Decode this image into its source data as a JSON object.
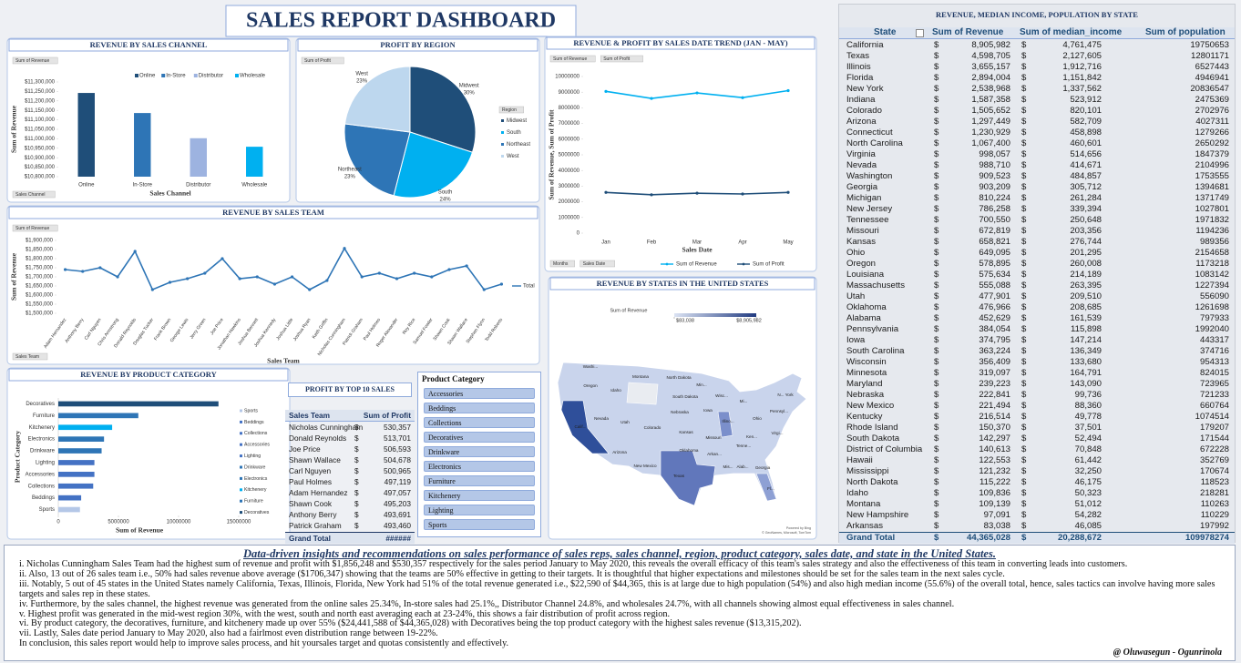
{
  "header": {
    "title": "SALES REPORT DASHBOARD"
  },
  "chart_data": [
    {
      "type": "bar",
      "title": "REVENUE BY SALES CHANNEL",
      "buttons": [
        "Sum of Revenue"
      ],
      "filters": [
        "Sales Channel"
      ],
      "x_label": "Sales Channel",
      "y_label": "Sum of Revenue",
      "legend": "top",
      "categories": [
        "Online",
        "In-Store",
        "Distributor",
        "Wholesale"
      ],
      "values": [
        11242000,
        11136000,
        11003000,
        10958000
      ],
      "colors": [
        "#1f4e79",
        "#2e75b6",
        "#9db3e0",
        "#00b0f0"
      ],
      "ylim": [
        10800000,
        11300000
      ],
      "yticks": [
        {
          "value": 10800000,
          "label": "$10,800,000"
        },
        {
          "value": 10850000,
          "label": "$10,850,000"
        },
        {
          "value": 10900000,
          "label": "$10,900,000"
        },
        {
          "value": 10950000,
          "label": "$10,950,000"
        },
        {
          "value": 11000000,
          "label": "$11,000,000"
        },
        {
          "value": 11050000,
          "label": "$11,050,000"
        },
        {
          "value": 11100000,
          "label": "$11,100,000"
        },
        {
          "value": 11150000,
          "label": "$11,150,000"
        },
        {
          "value": 11200000,
          "label": "$11,200,000"
        },
        {
          "value": 11250000,
          "label": "$11,250,000"
        },
        {
          "value": 11300000,
          "label": "$11,300,000"
        }
      ]
    },
    {
      "type": "pie",
      "title": "PROFIT BY REGION",
      "buttons": [
        "Sum of Profit"
      ],
      "legend_title": "Region",
      "legend": "right",
      "categories": [
        "Midwest",
        "South",
        "Northeast",
        "West"
      ],
      "values": [
        30,
        24,
        23,
        23
      ],
      "value_labels": [
        "30%",
        "24%",
        "23%",
        "23%"
      ],
      "colors": [
        "#1f4e79",
        "#00b0f0",
        "#2e75b6",
        "#bdd7ee"
      ]
    },
    {
      "type": "line",
      "title": "REVENUE & PROFIT BY SALES DATE TREND (JAN - MAY)",
      "buttons": [
        "Sum of Revenue",
        "Sum of Profit"
      ],
      "filters": [
        "Months",
        "Sales Date"
      ],
      "x_label": "Sales Date",
      "y_label": "Sum of Revenue, Sum of Profit",
      "legend": "bottom",
      "categories": [
        "Jan",
        "Feb",
        "Mar",
        "Apr",
        "May"
      ],
      "series": [
        {
          "name": "Sum of Revenue",
          "color": "#00b0f0",
          "values": [
            9050000,
            8600000,
            8950000,
            8650000,
            9100000
          ]
        },
        {
          "name": "Sum of Profit",
          "color": "#1f4e79",
          "values": [
            2600000,
            2450000,
            2550000,
            2500000,
            2600000
          ]
        }
      ],
      "ylim": [
        0,
        10000000
      ],
      "yticks": [
        0,
        1000000,
        2000000,
        3000000,
        4000000,
        5000000,
        6000000,
        7000000,
        8000000,
        9000000,
        10000000
      ]
    },
    {
      "type": "line",
      "title": "REVENUE BY SALES TEAM",
      "buttons": [
        "Sum of Revenue"
      ],
      "filters": [
        "Sales Team"
      ],
      "x_label": "Sales Team",
      "y_label": "Sum of Revenue",
      "legend": "right",
      "categories": [
        "Adam Hernandez",
        "Anthony Berry",
        "Carl Nguyen",
        "Chris Armstrong",
        "Donald Reynolds",
        "Douglas Tucker",
        "Frank Brown",
        "George Lewis",
        "Jerry Green",
        "Joe Price",
        "Jonathan Hawkins",
        "Joshua Bennett",
        "Joshua Kennedy",
        "Joshua Little",
        "Joshua Ryan",
        "Keith Griffin",
        "Nicholas Cunningham",
        "Patrick Graham",
        "Paul Holmes",
        "Roger Alexander",
        "Roy Rice",
        "Samuel Fowler",
        "Shawn Cook",
        "Shawn Wallace",
        "Stephen Flynn",
        "Todd Roberts"
      ],
      "series": [
        {
          "name": "Total",
          "color": "#2e75b6",
          "values": [
            1740000,
            1730000,
            1750000,
            1700000,
            1840000,
            1630000,
            1670000,
            1690000,
            1720000,
            1800000,
            1690000,
            1700000,
            1660000,
            1700000,
            1630000,
            1680000,
            1856248,
            1700000,
            1720000,
            1690000,
            1720000,
            1700000,
            1740000,
            1760000,
            1630000,
            1660000
          ]
        }
      ],
      "ylim": [
        1500000,
        1900000
      ],
      "yticks": [
        {
          "value": 1500000,
          "label": "$1,500,000"
        },
        {
          "value": 1550000,
          "label": "$1,550,000"
        },
        {
          "value": 1600000,
          "label": "$1,600,000"
        },
        {
          "value": 1650000,
          "label": "$1,650,000"
        },
        {
          "value": 1700000,
          "label": "$1,700,000"
        },
        {
          "value": 1750000,
          "label": "$1,750,000"
        },
        {
          "value": 1800000,
          "label": "$1,800,000"
        },
        {
          "value": 1850000,
          "label": "$1,850,000"
        },
        {
          "value": 1900000,
          "label": "$1,900,000"
        }
      ]
    },
    {
      "type": "hbar",
      "title": "REVENUE BY PRODUCT CATEGORY",
      "x_label": "Sum of Revenue",
      "y_label": "Product Category",
      "legend": "right",
      "categories": [
        "Decoratives",
        "Furniture",
        "Kitchenery",
        "Electronics",
        "Drinkware",
        "Lighting",
        "Accessories",
        "Collections",
        "Beddings",
        "Sports"
      ],
      "values": [
        13315202,
        6650000,
        4476386,
        3800000,
        3600000,
        3000000,
        3000000,
        2900000,
        1900000,
        1800000
      ],
      "colors": [
        "#1f4e79",
        "#2e75b6",
        "#00b0f0",
        "#2e75b6",
        "#2e75b6",
        "#4472c4",
        "#4472c4",
        "#4472c4",
        "#4472c4",
        "#b4c7e7"
      ],
      "xlim": [
        0,
        15000000
      ],
      "xticks": [
        0,
        5000000,
        10000000,
        15000000
      ]
    },
    {
      "type": "map",
      "title": "REVENUE BY STATES IN THE UNITED STATES",
      "legend_title": "Sum of Revenue",
      "scale": [
        {
          "value": 83038,
          "label": "$83,038"
        },
        {
          "value": 8905982,
          "label": "$8,905,982"
        }
      ],
      "labels": [
        "Washi...",
        "Montana",
        "North Dakota",
        "Min...",
        "Oregon",
        "Idaho",
        "South Dakota",
        "Wisc...",
        "Mi...",
        "N... York",
        "Nebraska",
        "Iowa",
        "Pennsyl...",
        "Nevada",
        "Utah",
        "Colorado",
        "Illino...",
        "Ohio",
        "Calif...",
        "Kansas",
        "Missouri",
        "Ken...",
        "Virgi...",
        "Tenne...",
        "Arizona",
        "Oklahoma",
        "Arkan...",
        "New Mexico",
        "Mis...",
        "Alab...",
        "Georgia",
        "Texas",
        "Fl..."
      ],
      "credits": [
        "Powered by Bing",
        "© GeoNames, Microsoft, TomTom"
      ]
    }
  ],
  "state_table": {
    "title": "REVENUE, MEDIAN INCOME, POPULATION BY STATE",
    "currency": "$",
    "columns": [
      "State",
      "Sum of Revenue",
      "Sum of median_income",
      "Sum of population"
    ],
    "rows": [
      [
        "California",
        "8,905,982",
        "4,761,475",
        "19750653"
      ],
      [
        "Texas",
        "4,598,705",
        "2,127,605",
        "12801171"
      ],
      [
        "Illinois",
        "3,655,157",
        "1,912,716",
        "6527443"
      ],
      [
        "Florida",
        "2,894,004",
        "1,151,842",
        "4946941"
      ],
      [
        "New York",
        "2,538,968",
        "1,337,562",
        "20836547"
      ],
      [
        "Indiana",
        "1,587,358",
        "523,912",
        "2475369"
      ],
      [
        "Colorado",
        "1,505,652",
        "820,101",
        "2702976"
      ],
      [
        "Arizona",
        "1,297,449",
        "582,709",
        "4027311"
      ],
      [
        "Connecticut",
        "1,230,929",
        "458,898",
        "1279266"
      ],
      [
        "North Carolina",
        "1,067,400",
        "460,601",
        "2650292"
      ],
      [
        "Virginia",
        "998,057",
        "514,656",
        "1847379"
      ],
      [
        "Nevada",
        "988,710",
        "414,671",
        "2104996"
      ],
      [
        "Washington",
        "909,523",
        "484,857",
        "1753555"
      ],
      [
        "Georgia",
        "903,209",
        "305,712",
        "1394681"
      ],
      [
        "Michigan",
        "810,224",
        "261,284",
        "1371749"
      ],
      [
        "New Jersey",
        "786,258",
        "339,394",
        "1027801"
      ],
      [
        "Tennessee",
        "700,550",
        "250,648",
        "1971832"
      ],
      [
        "Missouri",
        "672,819",
        "203,356",
        "1194236"
      ],
      [
        "Kansas",
        "658,821",
        "276,744",
        "989356"
      ],
      [
        "Ohio",
        "649,095",
        "201,295",
        "2154658"
      ],
      [
        "Oregon",
        "578,895",
        "260,008",
        "1173218"
      ],
      [
        "Louisiana",
        "575,634",
        "214,189",
        "1083142"
      ],
      [
        "Massachusetts",
        "555,088",
        "263,395",
        "1227394"
      ],
      [
        "Utah",
        "477,901",
        "209,510",
        "556090"
      ],
      [
        "Oklahoma",
        "476,966",
        "208,685",
        "1261698"
      ],
      [
        "Alabama",
        "452,629",
        "161,539",
        "797933"
      ],
      [
        "Pennsylvania",
        "384,054",
        "115,898",
        "1992040"
      ],
      [
        "Iowa",
        "374,795",
        "147,214",
        "443317"
      ],
      [
        "South Carolina",
        "363,224",
        "136,349",
        "374716"
      ],
      [
        "Wisconsin",
        "356,409",
        "133,680",
        "954313"
      ],
      [
        "Minnesota",
        "319,097",
        "164,791",
        "824015"
      ],
      [
        "Maryland",
        "239,223",
        "143,090",
        "723965"
      ],
      [
        "Nebraska",
        "222,841",
        "99,736",
        "721233"
      ],
      [
        "New Mexico",
        "221,494",
        "88,360",
        "660764"
      ],
      [
        "Kentucky",
        "216,514",
        "49,778",
        "1074514"
      ],
      [
        "Rhode Island",
        "150,370",
        "37,501",
        "179207"
      ],
      [
        "South Dakota",
        "142,297",
        "52,494",
        "171544"
      ],
      [
        "District of Columbia",
        "140,613",
        "70,848",
        "672228"
      ],
      [
        "Hawaii",
        "122,553",
        "61,442",
        "352769"
      ],
      [
        "Mississippi",
        "121,232",
        "32,250",
        "170674"
      ],
      [
        "North Dakota",
        "115,222",
        "46,175",
        "118523"
      ],
      [
        "Idaho",
        "109,836",
        "50,323",
        "218281"
      ],
      [
        "Montana",
        "109,139",
        "51,012",
        "110263"
      ],
      [
        "New Hampshire",
        "97,091",
        "54,282",
        "110229"
      ],
      [
        "Arkansas",
        "83,038",
        "46,085",
        "197992"
      ]
    ],
    "total": [
      "Grand Total",
      "44,365,028",
      "20,288,672",
      "109978274"
    ]
  },
  "top_sales": {
    "title": "PROFIT BY TOP 10 SALES",
    "currency": "$",
    "columns": [
      "Sales Team",
      "Sum of Profit"
    ],
    "rows": [
      [
        "Nicholas Cunningham",
        "530,357"
      ],
      [
        "Donald Reynolds",
        "513,701"
      ],
      [
        "Joe Price",
        "506,593"
      ],
      [
        "Shawn Wallace",
        "504,678"
      ],
      [
        "Carl Nguyen",
        "500,965"
      ],
      [
        "Paul Holmes",
        "497,119"
      ],
      [
        "Adam Hernandez",
        "497,057"
      ],
      [
        "Shawn Cook",
        "495,203"
      ],
      [
        "Anthony Berry",
        "493,691"
      ],
      [
        "Patrick Graham",
        "493,460"
      ]
    ],
    "total": [
      "Grand Total",
      "######"
    ]
  },
  "slicer": {
    "title": "Product Category",
    "items": [
      "Accessories",
      "Beddings",
      "Collections",
      "Decoratives",
      "Drinkware",
      "Electronics",
      "Furniture",
      "Kitchenery",
      "Lighting",
      "Sports"
    ]
  },
  "insights": {
    "title": "Data-driven insights and recommendations on sales performance of sales reps, sales channel,  region, product category, sales date, and state in the United States.",
    "points": [
      "i.  Nicholas Cunningham Sales Team had the highest sum of revenue and profit with $1,856,248 and $530,357 respectively for the sales period January to May 2020, this reveals the overall efficacy of this team's sales strategy and also the effectiveness of this team in converting leads into customers.",
      "ii.  Also, 13 out of 26 sales team i.e., 50% had sales revenue above average ($1706,347) showing that the teams are 50% effective in getting to their targets. It is thoughtful that higher expectations and milestones should be set for the sales team in the next sales cycle.",
      "iii.  Notably, 5 out of 45 states in the United States namely California, Texas, Illinois, Florida, New York had 51% of the total revenue generated i.e., $22,590 of $44,365, this is at large due to high population (54%) and also high median income (55.6%) of the overall total, hence, sales tactics can involve having more sales targets and sales rep in these states.",
      "iv.  Furthermore, by the sales channel, the highest revenue was generated from the online sales 25.34%, In-store sales had 25.1%,, Distributor Channel 24.8%, and wholesales 24.7%, with all channels showing almost equal effectiveness in sales channel.",
      "v.  Highest profit was generated in the mid-west region 30%, with the west, south and north east averaging each at 23-24%, this shows a fair distribution of profit across region.",
      "vi.  By product category, the decoratives, furniture, and kitchenery made up over 55% ($24,441,588 of $44,365,028) with Decoratives being the top product category with the highest sales revenue ($13,315,202).",
      "vii. Lastly, Sales date period January to May 2020, also had a fairlmost even distribution range between 19-22%.",
      "In conclusion, this sales report would help to improve sales process, and hit yoursales target and quotas consistently and effectively."
    ],
    "signature": "@ Oluwasegun - Ogunrinola"
  }
}
